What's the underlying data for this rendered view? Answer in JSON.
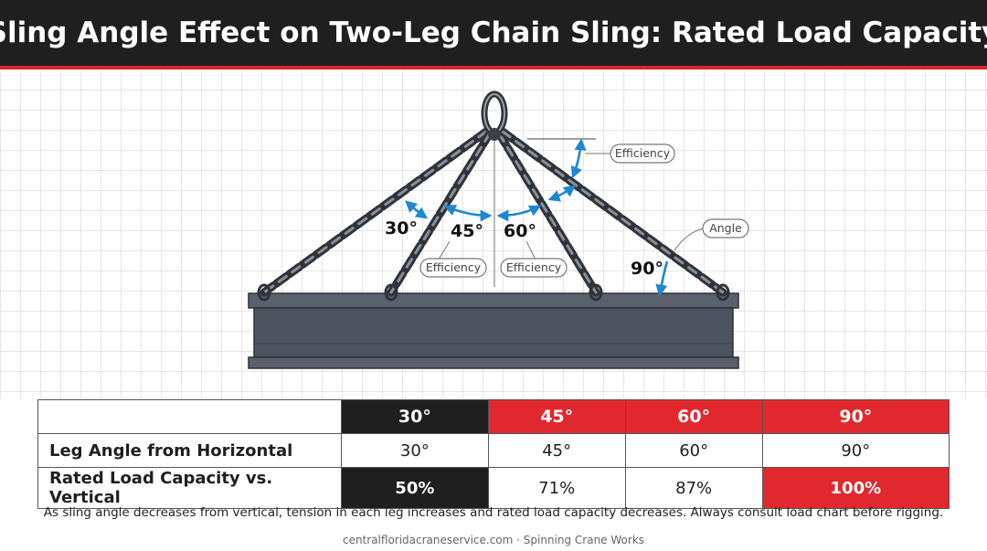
{
  "title": "Sling Angle Effect on Two-Leg Chain Sling: Rated Load Capacity",
  "diagram": {
    "angle_labels": [
      "30°",
      "45°",
      "60°",
      "90°"
    ],
    "callouts": {
      "efficiency_top": "Efficiency",
      "efficiency_left": "Efficiency",
      "efficiency_right": "Efficiency",
      "angle": "Angle"
    },
    "colors": {
      "arrow": "#1f87d0",
      "chain": "#4a4f58",
      "beam": "#565d68"
    }
  },
  "table": {
    "headers": [
      "",
      "30°",
      "45°",
      "60°",
      "90°"
    ],
    "rows": [
      {
        "label": "Leg Angle from Horizontal",
        "values": [
          "30°",
          "45°",
          "60°",
          "90°"
        ]
      },
      {
        "label": "Rated Load Capacity vs. Vertical",
        "values": [
          "50%",
          "71%",
          "87%",
          "100%"
        ]
      }
    ],
    "colors": {
      "dark": "#1f1f20",
      "red": "#e0282e"
    }
  },
  "footnote": "As sling angle decreases from vertical, tension in each leg increases and rated load capacity decreases. Always consult load chart before rigging.",
  "credit": "centralfloridacraneservice.com · Spinning Crane Works"
}
